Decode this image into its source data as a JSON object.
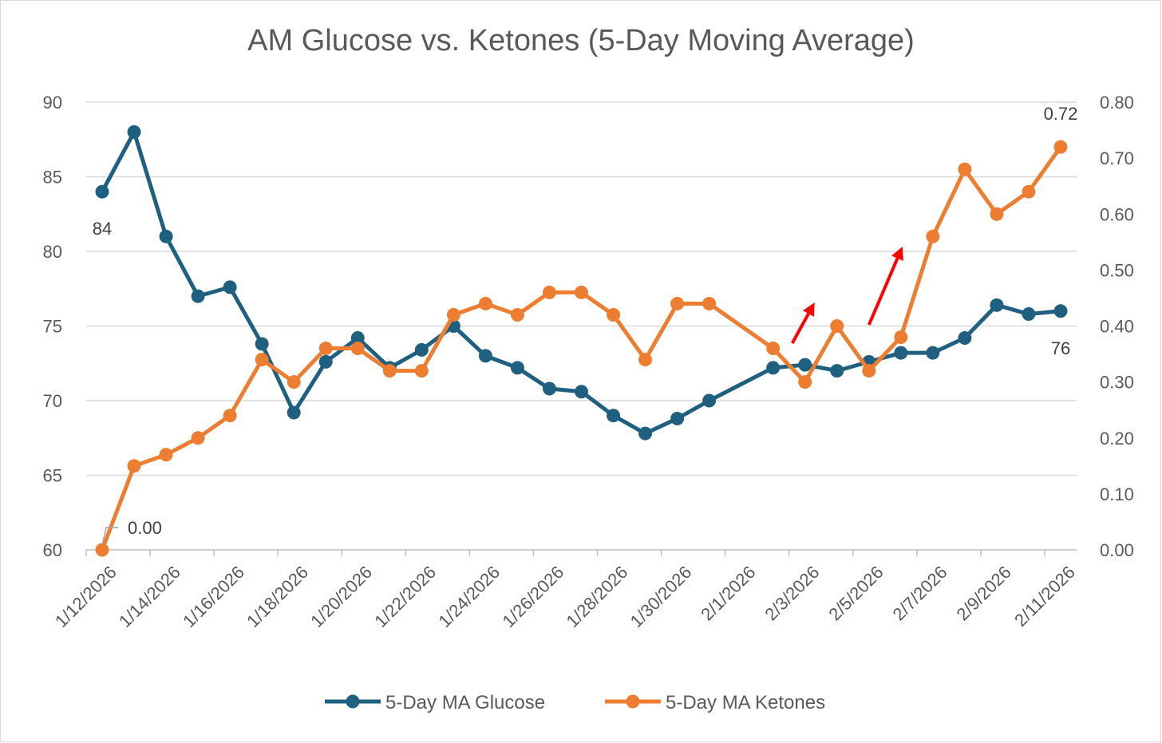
{
  "chart_data": {
    "type": "line",
    "title": "AM Glucose vs. Ketones (5-Day Moving Average)",
    "xlabel": "",
    "ylabel": "",
    "x_dates": [
      "1/12/2026",
      "1/13/2026",
      "1/14/2026",
      "1/15/2026",
      "1/16/2026",
      "1/17/2026",
      "1/18/2026",
      "1/19/2026",
      "1/20/2026",
      "1/21/2026",
      "1/22/2026",
      "1/23/2026",
      "1/24/2026",
      "1/25/2026",
      "1/26/2026",
      "1/27/2026",
      "1/28/2026",
      "1/29/2026",
      "1/30/2026",
      "1/31/2026",
      "2/1/2026",
      "2/2/2026",
      "2/3/2026",
      "2/4/2026",
      "2/5/2026",
      "2/6/2026",
      "2/7/2026",
      "2/8/2026",
      "2/9/2026",
      "2/10/2026",
      "2/11/2026"
    ],
    "x_tick_labels": [
      "1/12/2026",
      "1/14/2026",
      "1/16/2026",
      "1/18/2026",
      "1/20/2026",
      "1/22/2026",
      "1/24/2026",
      "1/26/2026",
      "1/28/2026",
      "1/30/2026",
      "2/1/2026",
      "2/3/2026",
      "2/5/2026",
      "2/7/2026",
      "2/9/2026",
      "2/11/2026"
    ],
    "y_left": {
      "min": 60,
      "max": 90,
      "ticks": [
        "60",
        "65",
        "70",
        "75",
        "80",
        "85",
        "90"
      ]
    },
    "y_right": {
      "min": 0,
      "max": 0.8,
      "ticks": [
        "0.00",
        "0.10",
        "0.20",
        "0.30",
        "0.40",
        "0.50",
        "0.60",
        "0.70",
        "0.80"
      ]
    },
    "grid": true,
    "legend_position": "bottom",
    "series": [
      {
        "name": "5-Day MA Glucose",
        "axis": "left",
        "color": "#1f5f7f",
        "points": [
          [
            "1/12/2026",
            84
          ],
          [
            "1/13/2026",
            88
          ],
          [
            "1/14/2026",
            81
          ],
          [
            "1/15/2026",
            77
          ],
          [
            "1/16/2026",
            77.6
          ],
          [
            "1/17/2026",
            73.8
          ],
          [
            "1/18/2026",
            69.2
          ],
          [
            "1/19/2026",
            72.6
          ],
          [
            "1/20/2026",
            74.2
          ],
          [
            "1/21/2026",
            72.2
          ],
          [
            "1/22/2026",
            73.4
          ],
          [
            "1/23/2026",
            75
          ],
          [
            "1/24/2026",
            73
          ],
          [
            "1/25/2026",
            72.2
          ],
          [
            "1/26/2026",
            70.8
          ],
          [
            "1/27/2026",
            70.6
          ],
          [
            "1/28/2026",
            69
          ],
          [
            "1/29/2026",
            67.8
          ],
          [
            "1/30/2026",
            68.8
          ],
          [
            "1/31/2026",
            70
          ],
          [
            "2/2/2026",
            72.2
          ],
          [
            "2/3/2026",
            72.4
          ],
          [
            "2/4/2026",
            72
          ],
          [
            "2/5/2026",
            72.6
          ],
          [
            "2/6/2026",
            73.2
          ],
          [
            "2/7/2026",
            73.2
          ],
          [
            "2/8/2026",
            74.2
          ],
          [
            "2/9/2026",
            76.4
          ],
          [
            "2/10/2026",
            75.8
          ],
          [
            "2/11/2026",
            76
          ]
        ]
      },
      {
        "name": "5-Day MA Ketones",
        "axis": "right",
        "color": "#ed7d31",
        "points": [
          [
            "1/12/2026",
            0.0
          ],
          [
            "1/13/2026",
            0.15
          ],
          [
            "1/14/2026",
            0.17
          ],
          [
            "1/15/2026",
            0.2
          ],
          [
            "1/16/2026",
            0.24
          ],
          [
            "1/17/2026",
            0.34
          ],
          [
            "1/18/2026",
            0.3
          ],
          [
            "1/19/2026",
            0.36
          ],
          [
            "1/20/2026",
            0.36
          ],
          [
            "1/21/2026",
            0.32
          ],
          [
            "1/22/2026",
            0.32
          ],
          [
            "1/23/2026",
            0.42
          ],
          [
            "1/24/2026",
            0.44
          ],
          [
            "1/25/2026",
            0.42
          ],
          [
            "1/26/2026",
            0.46
          ],
          [
            "1/27/2026",
            0.46
          ],
          [
            "1/28/2026",
            0.42
          ],
          [
            "1/29/2026",
            0.34
          ],
          [
            "1/30/2026",
            0.44
          ],
          [
            "1/31/2026",
            0.44
          ],
          [
            "2/2/2026",
            0.36
          ],
          [
            "2/3/2026",
            0.3
          ],
          [
            "2/4/2026",
            0.4
          ],
          [
            "2/5/2026",
            0.32
          ],
          [
            "2/6/2026",
            0.38
          ],
          [
            "2/7/2026",
            0.56
          ],
          [
            "2/8/2026",
            0.68
          ],
          [
            "2/9/2026",
            0.6
          ],
          [
            "2/10/2026",
            0.64
          ],
          [
            "2/11/2026",
            0.72
          ]
        ]
      }
    ],
    "data_labels": [
      {
        "series": "5-Day MA Glucose",
        "date": "1/12/2026",
        "text": "84"
      },
      {
        "series": "5-Day MA Glucose",
        "date": "2/11/2026",
        "text": "76"
      },
      {
        "series": "5-Day MA Ketones",
        "date": "1/12/2026",
        "text": "0.00"
      },
      {
        "series": "5-Day MA Ketones",
        "date": "2/11/2026",
        "text": "0.72"
      }
    ],
    "annotations": [
      {
        "type": "arrow",
        "color": "#ff0000",
        "near_date": "2/3/2026"
      },
      {
        "type": "arrow",
        "color": "#ff0000",
        "near_date": "2/6/2026"
      }
    ]
  }
}
